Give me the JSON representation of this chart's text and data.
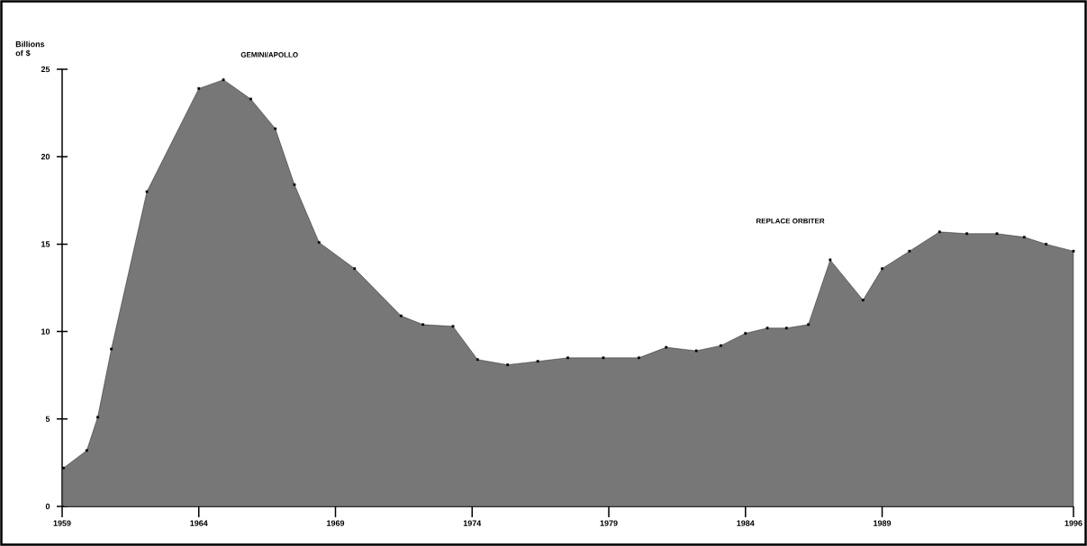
{
  "chart_data": {
    "type": "area",
    "ylabel": "Billions of $",
    "x": [
      1959.05,
      1959.9,
      1960.3,
      1960.8,
      1962.1,
      1964.0,
      1964.9,
      1965.9,
      1966.8,
      1967.5,
      1968.4,
      1969.7,
      1971.4,
      1972.2,
      1973.3,
      1974.2,
      1975.3,
      1976.4,
      1977.5,
      1978.8,
      1980.1,
      1981.1,
      1982.2,
      1983.1,
      1984.0,
      1984.8,
      1985.5,
      1986.3,
      1987.1,
      1988.3,
      1989.0,
      1990.0,
      1991.1,
      1992.1,
      1993.2,
      1994.2,
      1995.0,
      1996.0
    ],
    "values": [
      2.2,
      3.2,
      5.1,
      9.0,
      18.0,
      23.9,
      24.4,
      23.3,
      21.6,
      18.4,
      15.1,
      13.6,
      10.9,
      10.4,
      10.3,
      8.4,
      8.1,
      8.3,
      8.5,
      8.5,
      8.5,
      9.1,
      8.9,
      9.2,
      9.9,
      10.2,
      10.2,
      10.4,
      14.1,
      11.8,
      13.6,
      14.6,
      15.7,
      15.6,
      15.6,
      15.4,
      15.0,
      14.6
    ],
    "color": "#777777",
    "marker": "square",
    "xlim": [
      1959,
      1996
    ],
    "xticks": [
      1959,
      1964,
      1969,
      1974,
      1979,
      1984,
      1989,
      1996
    ],
    "ylim": [
      0,
      25
    ],
    "yticks": [
      0,
      5,
      10,
      15,
      20,
      25
    ],
    "annotations": [
      "GEMINI/APOLLO",
      "REPLACE ORBITER"
    ]
  }
}
